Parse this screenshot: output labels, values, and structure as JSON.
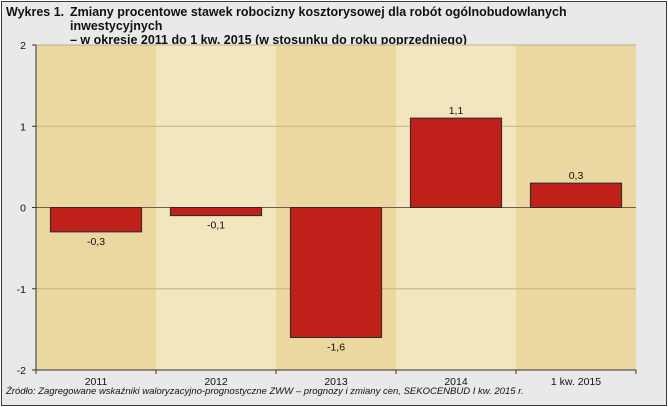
{
  "figure": {
    "label": "Wykres 1.",
    "title_line1": "Zmiany procentowe stawek robocizny kosztorysowej dla robót ogólnobudowlanych inwestycyjnych",
    "title_line2": "– w okresie 2011 do 1 kw. 2015 (w stosunku do roku poprzedniego)",
    "source": "Źródło:  Zagregowane wskaźniki waloryzacyjno-prognostyczne ZWW – prognozy i zmiany cen, SEKOCENBUD I kw. 2015 r."
  },
  "colors": {
    "bar": "#c0201a",
    "bar_stroke": "#2a2a2a",
    "band_dark": "#ead8a0",
    "band_light": "#f1e6be",
    "grid": "#bfb18a"
  },
  "chart_data": {
    "type": "bar",
    "categories": [
      "2011",
      "2012",
      "2013",
      "2014",
      "1 kw. 2015"
    ],
    "values": [
      -0.3,
      -0.1,
      -1.6,
      1.1,
      0.3
    ],
    "value_labels": [
      "-0,3",
      "-0,1",
      "-1,6",
      "1,1",
      "0,3"
    ],
    "ylim": [
      -2,
      2
    ],
    "yticks": [
      2,
      1,
      0,
      -1,
      -2
    ],
    "ytick_labels": [
      "2",
      "1",
      "0",
      "-1",
      "-2"
    ],
    "grid": true
  }
}
